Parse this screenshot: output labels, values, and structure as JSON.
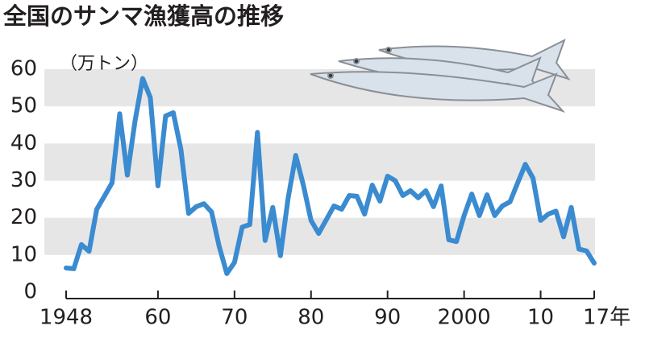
{
  "chart_data": {
    "type": "line",
    "title": "全国のサンマ漁獲高の推移",
    "y_label": "（万トン）",
    "x": [
      1948,
      1949,
      1950,
      1951,
      1952,
      1953,
      1954,
      1955,
      1956,
      1957,
      1958,
      1959,
      1960,
      1961,
      1962,
      1963,
      1964,
      1965,
      1966,
      1967,
      1968,
      1969,
      1970,
      1971,
      1972,
      1973,
      1974,
      1975,
      1976,
      1977,
      1978,
      1979,
      1980,
      1981,
      1982,
      1983,
      1984,
      1985,
      1986,
      1987,
      1988,
      1989,
      1990,
      1991,
      1992,
      1993,
      1994,
      1995,
      1996,
      1997,
      1998,
      1999,
      2000,
      2001,
      2002,
      2003,
      2004,
      2005,
      2006,
      2007,
      2008,
      2009,
      2010,
      2011,
      2012,
      2013,
      2014,
      2015,
      2016,
      2017
    ],
    "series": [
      {
        "name": "漁獲高",
        "color": "#3a8bd0",
        "values": [
          6.5,
          6.3,
          12.8,
          11,
          22.3,
          25.8,
          29.4,
          48,
          31.5,
          46,
          57.5,
          52.4,
          28.6,
          47.4,
          48.3,
          38.4,
          21.2,
          23,
          23.8,
          21.6,
          12.3,
          5,
          8,
          17.5,
          18.2,
          43,
          13.9,
          22.8,
          9.8,
          25.2,
          36.8,
          28.8,
          19.3,
          15.8,
          19.5,
          23.2,
          22.3,
          26,
          25.8,
          21,
          28.8,
          24.5,
          31.2,
          30,
          26,
          27.3,
          25.4,
          27.3,
          23,
          28.6,
          14.1,
          13.6,
          20.6,
          26.4,
          20.6,
          26.2,
          20.6,
          23.2,
          24.3,
          29.4,
          34.4,
          30.7,
          19.3,
          21,
          21.8,
          14.9,
          22.8,
          11.6,
          11.1,
          7.8
        ]
      }
    ],
    "xlim": [
      1948,
      2017
    ],
    "xticks": [
      1948,
      {
        "value": 1960,
        "label": "60"
      },
      {
        "value": 1970,
        "label": "70"
      },
      {
        "value": 1980,
        "label": "80"
      },
      {
        "value": 1990,
        "label": "90"
      },
      2000,
      {
        "value": 2010,
        "label": "10"
      },
      {
        "value": 2017,
        "label": "17年"
      }
    ],
    "ylim": [
      0,
      60
    ],
    "yticks": [
      0,
      10,
      20,
      30,
      40,
      50,
      60
    ],
    "grid": true,
    "band_color": "#e6e6e7"
  }
}
